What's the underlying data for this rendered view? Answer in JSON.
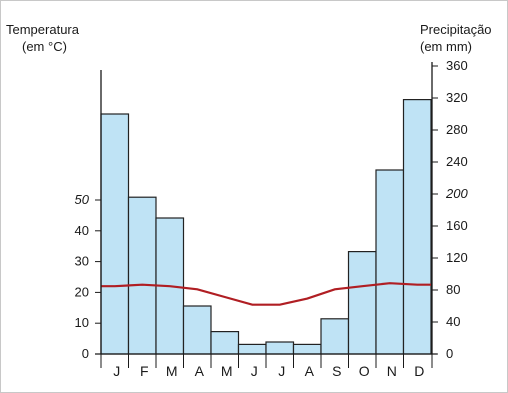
{
  "chart_data": {
    "type": "bar",
    "subtype": "climograph",
    "left_axis": {
      "title_line1": "Temperatura",
      "title_line2": "(em °C)",
      "ylim": [
        0,
        60
      ],
      "ticks": [
        "0",
        "10",
        "20",
        "30",
        "40",
        "50"
      ]
    },
    "right_axis": {
      "title_line1": "Precipitação",
      "title_line2": "(em mm)",
      "ylim": [
        0,
        360
      ],
      "ticks": [
        "0",
        "40",
        "80",
        "120",
        "160",
        "200",
        "240",
        "280",
        "320",
        "360"
      ]
    },
    "categories": [
      "J",
      "F",
      "M",
      "A",
      "M",
      "J",
      "J",
      "A",
      "S",
      "O",
      "N",
      "D"
    ],
    "series": [
      {
        "kind": "bar",
        "axis": "right",
        "values": [
          300,
          196,
          170,
          60,
          28,
          12,
          15,
          12,
          44,
          128,
          230,
          318
        ]
      },
      {
        "kind": "line",
        "axis": "left",
        "values": [
          22,
          22.5,
          22,
          21,
          18.5,
          16,
          16,
          18,
          21,
          22,
          23,
          22.5
        ]
      }
    ],
    "colors": {
      "bar_fill": "#bfe3f5",
      "bar_edge": "#222222",
      "line": "#b01e23"
    },
    "grid": false
  }
}
